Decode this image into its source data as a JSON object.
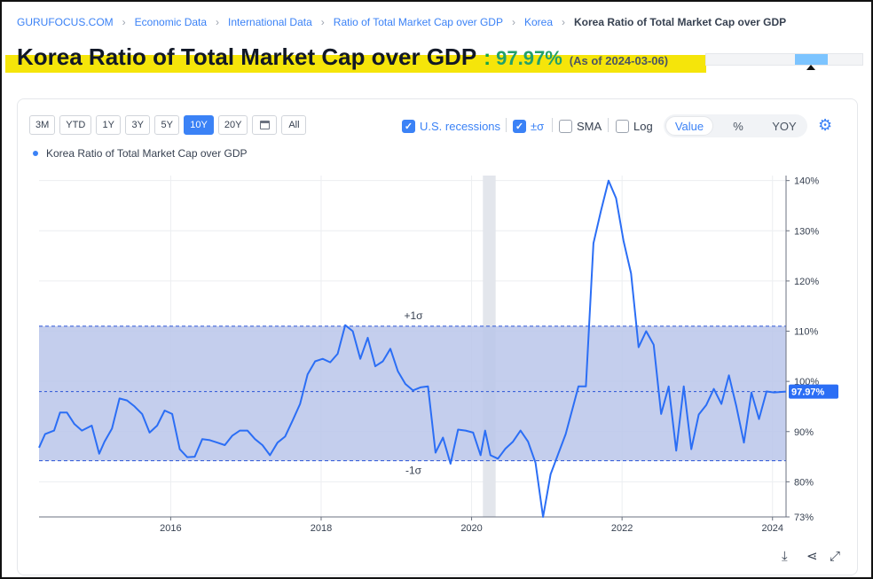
{
  "breadcrumb": [
    "GURUFOCUS.COM",
    "Economic Data",
    "International Data",
    "Ratio of Total Market Cap over GDP",
    "Korea",
    "Korea Ratio of Total Market Cap over GDP"
  ],
  "header": {
    "title": "Korea Ratio of Total Market Cap over GDP",
    "colon": ":",
    "value": "97.97%",
    "as_of": "(As of 2024-03-06)"
  },
  "toolbar": {
    "ranges": [
      "3M",
      "YTD",
      "1Y",
      "3Y",
      "5Y",
      "10Y",
      "20Y",
      "All"
    ],
    "active_range": "10Y",
    "calendar_icon": "calendar-icon",
    "recessions_label": "U.S. recessions",
    "sigma_label": "±σ",
    "sma_label": "SMA",
    "log_label": "Log",
    "modes": [
      "Value",
      "%",
      "YOY"
    ],
    "active_mode": "Value",
    "settings_icon": "gear-icon"
  },
  "colors": {
    "accent": "#3b82f6",
    "value_green": "#22a06b",
    "highlight": "#f5e50a",
    "sigma_band": "#bac5ea",
    "recession": "#e3e6ec"
  },
  "chart_data": {
    "type": "line",
    "legend": [
      "Korea Ratio of Total Market Cap over GDP"
    ],
    "series": [
      {
        "name": "Korea Ratio of Total Market Cap over GDP",
        "x": [
          2014.25,
          2014.33,
          2014.45,
          2014.53,
          2014.62,
          2014.72,
          2014.82,
          2014.95,
          2015.05,
          2015.12,
          2015.22,
          2015.32,
          2015.42,
          2015.52,
          2015.62,
          2015.72,
          2015.82,
          2015.92,
          2016.02,
          2016.12,
          2016.22,
          2016.32,
          2016.42,
          2016.52,
          2016.62,
          2016.72,
          2016.82,
          2016.92,
          2017.02,
          2017.12,
          2017.22,
          2017.32,
          2017.42,
          2017.52,
          2017.62,
          2017.72,
          2017.82,
          2017.92,
          2018.02,
          2018.12,
          2018.22,
          2018.32,
          2018.42,
          2018.52,
          2018.62,
          2018.72,
          2018.82,
          2018.92,
          2019.02,
          2019.12,
          2019.22,
          2019.32,
          2019.42,
          2019.52,
          2019.62,
          2019.72,
          2019.82,
          2019.92,
          2020.02,
          2020.12,
          2020.18,
          2020.25,
          2020.35,
          2020.45,
          2020.55,
          2020.65,
          2020.75,
          2020.85,
          2020.95,
          2021.05,
          2021.15,
          2021.25,
          2021.35,
          2021.42,
          2021.52,
          2021.62,
          2021.72,
          2021.82,
          2021.92,
          2022.02,
          2022.12,
          2022.22,
          2022.32,
          2022.42,
          2022.52,
          2022.62,
          2022.72,
          2022.82,
          2022.92,
          2023.02,
          2023.12,
          2023.22,
          2023.32,
          2023.42,
          2023.52,
          2023.62,
          2023.72,
          2023.82,
          2023.92,
          2024.02,
          2024.12,
          2024.18
        ],
        "values": [
          86.8,
          89.5,
          90.2,
          93.8,
          93.8,
          91.5,
          90.2,
          91.2,
          85.6,
          88.0,
          90.6,
          96.6,
          96.2,
          95.0,
          93.5,
          89.8,
          91.2,
          94.2,
          93.5,
          86.5,
          84.9,
          85.0,
          88.5,
          88.3,
          87.8,
          87.3,
          89.2,
          90.2,
          90.2,
          88.5,
          87.3,
          85.3,
          87.8,
          89.0,
          92.2,
          95.5,
          101.4,
          104.0,
          104.5,
          103.8,
          105.5,
          111.2,
          110.0,
          104.5,
          108.7,
          103.0,
          104.0,
          106.5,
          102.0,
          99.5,
          98.2,
          98.8,
          99.0,
          85.8,
          88.8,
          83.6,
          90.4,
          90.2,
          89.8,
          85.3,
          90.2,
          85.3,
          84.6,
          86.6,
          88.0,
          90.2,
          88.0,
          83.8,
          73.0,
          81.5,
          85.5,
          89.5,
          95.0,
          99.0,
          99.0,
          127.5,
          134.0,
          140.0,
          136.5,
          128.0,
          121.5,
          106.8,
          110.0,
          107.3,
          93.5,
          99.0,
          86.2,
          99.0,
          86.5,
          93.4,
          95.3,
          98.5,
          95.5,
          101.2,
          95.0,
          87.8,
          97.8,
          92.5,
          98.0,
          97.8,
          97.9,
          97.97
        ],
        "note": "sigma band upper 111.0, lower 84.2; mean 97.97"
      }
    ],
    "sigma": {
      "upper": 111.0,
      "lower": 84.2,
      "upper_label": "+1σ",
      "lower_label": "-1σ"
    },
    "current": {
      "value": 97.97,
      "label": "97.97%"
    },
    "recession": {
      "start": 2020.15,
      "end": 2020.32
    },
    "x_ticks": [
      {
        "value": 2016,
        "label": "2016"
      },
      {
        "value": 2018,
        "label": "2018"
      },
      {
        "value": 2020,
        "label": "2020"
      },
      {
        "value": 2022,
        "label": "2022"
      },
      {
        "value": 2024,
        "label": "2024"
      }
    ],
    "y_ticks": [
      {
        "value": 140,
        "label": "140%"
      },
      {
        "value": 130,
        "label": "130%"
      },
      {
        "value": 120,
        "label": "120%"
      },
      {
        "value": 110,
        "label": "110%"
      },
      {
        "value": 100,
        "label": "100%"
      },
      {
        "value": 90,
        "label": "90%"
      },
      {
        "value": 80,
        "label": "80%"
      },
      {
        "value": 73,
        "label": "73%"
      }
    ],
    "xlim": [
      2014.25,
      2024.18
    ],
    "ylim": [
      73,
      141
    ],
    "axis_side": "right",
    "grid": true
  },
  "footer_icons": [
    "download-icon",
    "share-icon",
    "fullscreen-icon"
  ]
}
